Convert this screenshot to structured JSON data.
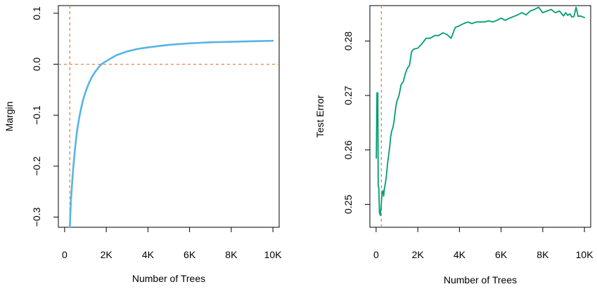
{
  "chart_data": [
    {
      "type": "line",
      "title": "",
      "xlabel": "Number of Trees",
      "ylabel": "Margin",
      "xlim": [
        -300,
        10300
      ],
      "ylim": [
        -0.32,
        0.115
      ],
      "x_ticks": [
        0,
        2000,
        4000,
        6000,
        8000,
        10000
      ],
      "x_tick_labels": [
        "0",
        "2K",
        "4K",
        "6K",
        "8K",
        "10K"
      ],
      "y_ticks": [
        -0.3,
        -0.2,
        -0.1,
        0.0,
        0.1
      ],
      "y_tick_labels": [
        "−0.3",
        "−0.2",
        "−0.1",
        "0.0",
        "0.1"
      ],
      "reference_lines": [
        {
          "orientation": "vertical",
          "value": 250,
          "color": "#E07B39",
          "style": "dashed"
        },
        {
          "orientation": "horizontal",
          "value": 0.0,
          "color": "#E07B39",
          "style": "dashed"
        }
      ],
      "series": [
        {
          "name": "Margin",
          "color": "#56B4E9",
          "x": [
            250,
            300,
            400,
            500,
            600,
            700,
            800,
            900,
            1000,
            1100,
            1200,
            1300,
            1400,
            1500,
            1600,
            1700,
            1800,
            2000,
            2200,
            2500,
            3000,
            3500,
            4000,
            5000,
            6000,
            7000,
            8000,
            9000,
            10000
          ],
          "y": [
            -0.32,
            -0.27,
            -0.21,
            -0.165,
            -0.13,
            -0.105,
            -0.085,
            -0.068,
            -0.055,
            -0.044,
            -0.034,
            -0.026,
            -0.019,
            -0.013,
            -0.008,
            -0.003,
            0.001,
            0.006,
            0.011,
            0.018,
            0.025,
            0.03,
            0.033,
            0.038,
            0.041,
            0.043,
            0.044,
            0.045,
            0.046
          ]
        }
      ]
    },
    {
      "type": "line",
      "title": "",
      "xlabel": "Number of Trees",
      "ylabel": "Test Error",
      "xlim": [
        -300,
        10300
      ],
      "ylim": [
        0.2458,
        0.2865
      ],
      "x_ticks": [
        0,
        2000,
        4000,
        6000,
        8000,
        10000
      ],
      "x_tick_labels": [
        "0",
        "2K",
        "4K",
        "6K",
        "8K",
        "10K"
      ],
      "y_ticks": [
        0.25,
        0.26,
        0.27,
        0.28
      ],
      "y_tick_labels": [
        "0.25",
        "0.26",
        "0.27",
        "0.28"
      ],
      "reference_lines": [
        {
          "orientation": "vertical",
          "value": 250,
          "color": "#E07B39",
          "style": "dashed"
        }
      ],
      "series": [
        {
          "name": "Test Error",
          "color": "#009E73",
          "x": [
            10,
            40,
            60,
            80,
            100,
            130,
            160,
            200,
            240,
            280,
            320,
            360,
            400,
            450,
            500,
            550,
            600,
            650,
            700,
            750,
            800,
            850,
            900,
            950,
            1000,
            1100,
            1200,
            1300,
            1400,
            1500,
            1600,
            1700,
            1800,
            2000,
            2200,
            2400,
            2600,
            2800,
            3000,
            3200,
            3400,
            3600,
            3800,
            4000,
            4200,
            4400,
            4600,
            4800,
            5000,
            5200,
            5400,
            5600,
            5800,
            6000,
            6200,
            6400,
            6600,
            6800,
            7000,
            7200,
            7400,
            7600,
            7800,
            8000,
            8200,
            8400,
            8600,
            8800,
            9000,
            9100,
            9200,
            9300,
            9400,
            9500,
            9600,
            9700,
            9800,
            10000
          ],
          "y": [
            0.2585,
            0.2705,
            0.2675,
            0.2705,
            0.2535,
            0.253,
            0.2485,
            0.248,
            0.2495,
            0.252,
            0.2525,
            0.2515,
            0.253,
            0.254,
            0.2555,
            0.2575,
            0.259,
            0.2605,
            0.2625,
            0.2635,
            0.264,
            0.265,
            0.2665,
            0.268,
            0.269,
            0.27,
            0.272,
            0.2725,
            0.274,
            0.275,
            0.2755,
            0.278,
            0.2785,
            0.2787,
            0.2795,
            0.2805,
            0.2805,
            0.281,
            0.281,
            0.2815,
            0.2812,
            0.2805,
            0.2825,
            0.2828,
            0.2832,
            0.2835,
            0.2832,
            0.2835,
            0.2835,
            0.2835,
            0.2837,
            0.2835,
            0.2838,
            0.2842,
            0.2838,
            0.2842,
            0.2845,
            0.2848,
            0.2852,
            0.2848,
            0.2855,
            0.2858,
            0.2862,
            0.2852,
            0.2855,
            0.2858,
            0.2852,
            0.2855,
            0.2846,
            0.2852,
            0.2847,
            0.285,
            0.2844,
            0.2845,
            0.2862,
            0.2845,
            0.2846,
            0.2843
          ]
        }
      ]
    }
  ]
}
